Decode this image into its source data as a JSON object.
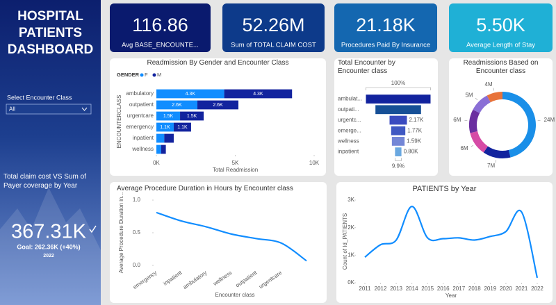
{
  "sidebar": {
    "title": "HOSPITAL PATIENTS DASHBOARD",
    "filter_label": "Select Encounter Class",
    "filter_value": "All",
    "kpi_title": "Total claim cost VS Sum of Payer coverage by Year",
    "kpi_value": "367.31K",
    "kpi_goal": "Goal: 262.36K (+40%)",
    "kpi_year": "2022"
  },
  "cards": [
    {
      "value": "116.86",
      "label": "Avg BASE_ENCOUNTE...",
      "color": "#0a1a6e"
    },
    {
      "value": "52.26M",
      "label": "Sum of TOTAL CLAIM COST",
      "color": "#0d3a8a"
    },
    {
      "value": "21.18K",
      "label": "Procedures Paid By Insurance",
      "color": "#1467b0"
    },
    {
      "value": "5.50K",
      "label": "Average Length of Stay",
      "color": "#1fb0d6"
    }
  ],
  "chart_data": [
    {
      "type": "bar",
      "orientation": "horizontal",
      "stacked": true,
      "title": "Readmission By Gender and Encounter Class",
      "legend_title": "GENDER",
      "categories": [
        "ambulatory",
        "outpatient",
        "urgentcare",
        "emergency",
        "inpatient",
        "wellness"
      ],
      "series": [
        {
          "name": "F",
          "color": "#118dff",
          "values": [
            4300,
            2600,
            1500,
            1100,
            500,
            300
          ],
          "value_labels": [
            "4.3K",
            "2.6K",
            "1.5K",
            "1.1K",
            null,
            null
          ]
        },
        {
          "name": "M",
          "color": "#12239e",
          "values": [
            4300,
            2600,
            1500,
            1100,
            600,
            300
          ],
          "value_labels": [
            "4.3K",
            "2.6K",
            "1.5K",
            "1.1K",
            null,
            null
          ]
        }
      ],
      "xlim": [
        0,
        10000
      ],
      "xticks": [
        {
          "value": 0,
          "label": "0K"
        },
        {
          "value": 5000,
          "label": "5K"
        },
        {
          "value": 10000,
          "label": "10K"
        }
      ],
      "xlabel": "Total Readmission",
      "ylabel": "ENCOUNTERCLASS"
    },
    {
      "type": "funnel",
      "title": "Total Encounter by Encounter class",
      "categories": [
        "ambulat...",
        "outpati...",
        "urgentc...",
        "emerge...",
        "wellness",
        "inpatient"
      ],
      "values": [
        8080,
        5700,
        2170,
        1770,
        1590,
        800
      ],
      "value_labels": [
        null,
        null,
        "2.17K",
        "1.77K",
        "1.59K",
        "0.80K"
      ],
      "colors": [
        "#12239e",
        "#164f96",
        "#3a4bc0",
        "#3f58c2",
        "#7386d6",
        "#6aa8e0"
      ],
      "annotations": [
        "100%",
        "9.9%"
      ]
    },
    {
      "type": "pie",
      "donut": true,
      "title": "Readmissions Based on Encounter class",
      "values": [
        24000000,
        7000000,
        6000000,
        6000000,
        5000000,
        4000000
      ],
      "value_labels": [
        "24M",
        "7M",
        "6M",
        "6M",
        "5M",
        "4M"
      ],
      "colors": [
        "#1a8fe8",
        "#12239e",
        "#d64ba6",
        "#6b2fa0",
        "#8a6fd6",
        "#e8733a"
      ]
    },
    {
      "type": "line",
      "title": "Average Procedure Duration in Hours by Encounter class",
      "categories": [
        "emergency",
        "inpatient",
        "ambulatory",
        "wellness",
        "outpatient",
        "urgentcare",
        null
      ],
      "values": [
        0.81,
        0.68,
        0.59,
        0.48,
        0.41,
        0.34,
        0.07
      ],
      "color": "#118dff",
      "ylim": [
        0,
        1
      ],
      "yticks": [
        {
          "value": 0,
          "label": "0.0"
        },
        {
          "value": 0.5,
          "label": "0.5"
        },
        {
          "value": 1,
          "label": "1.0"
        }
      ],
      "xlabel": "Encounter class",
      "ylabel": "Average Procedure Duration in..."
    },
    {
      "type": "line",
      "title": "PATIENTS by Year",
      "x": [
        2011,
        2012,
        2013,
        2014,
        2015,
        2016,
        2017,
        2018,
        2019,
        2020,
        2021,
        2022
      ],
      "values": [
        930,
        1380,
        1550,
        2770,
        1630,
        1600,
        1630,
        1550,
        1680,
        1860,
        2570,
        180
      ],
      "color": "#118dff",
      "xlim": [
        2010.6,
        2022.4
      ],
      "xticks": [
        2011,
        2012,
        2013,
        2014,
        2015,
        2016,
        2017,
        2018,
        2019,
        2020,
        2021,
        2022
      ],
      "ylim": [
        0,
        3000
      ],
      "yticks": [
        {
          "value": 0,
          "label": "0K"
        },
        {
          "value": 1000,
          "label": "1K"
        },
        {
          "value": 2000,
          "label": "2K"
        },
        {
          "value": 3000,
          "label": "3K"
        }
      ],
      "xlabel": "Year",
      "ylabel": "Count of Id_PATIENTS"
    }
  ]
}
